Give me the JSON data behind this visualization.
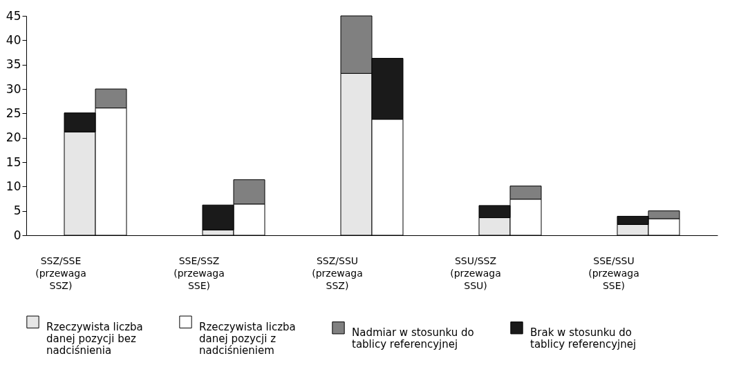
{
  "chart_data": {
    "type": "bar",
    "stacked": true,
    "categories": [
      "SSZ/SSE (przewaga SSZ)",
      null,
      "SSE/SSZ (przewaga SSE)",
      null,
      "SSZ/SSU (przewaga SSZ)",
      null,
      "SSU/SSZ (przewaga SSU)",
      null,
      "SSE/SSU (przewaga SSE)",
      null
    ],
    "series": [
      {
        "name": "Rzeczywista liczba danej pozycji bez nadciśnienia",
        "color": "#e6e6e6",
        "values": [
          21.2,
          null,
          1.1,
          null,
          33.2,
          null,
          3.6,
          null,
          2.2,
          null
        ]
      },
      {
        "name": "Rzeczywista liczba danej pozycji z nadciśnieniem",
        "color": "#ffffff",
        "values": [
          null,
          26.1,
          null,
          6.4,
          null,
          23.8,
          null,
          7.4,
          null,
          3.4
        ]
      },
      {
        "name": "Nadmiar w stosunku do tablicy referencyjnej",
        "color": "#808080",
        "values": [
          null,
          3.9,
          null,
          5.0,
          11.8,
          null,
          null,
          2.7,
          null,
          1.6
        ]
      },
      {
        "name": "Brak w stosunku do tablicy referencyjnej",
        "color": "#1a1a1a",
        "values": [
          3.9,
          null,
          5.1,
          null,
          null,
          12.5,
          2.5,
          null,
          1.7,
          null
        ]
      }
    ],
    "ylim": [
      0,
      45
    ],
    "yticks": [
      0,
      5,
      10,
      15,
      20,
      25,
      30,
      35,
      40,
      45
    ],
    "grid": false,
    "legend": "bottom"
  }
}
